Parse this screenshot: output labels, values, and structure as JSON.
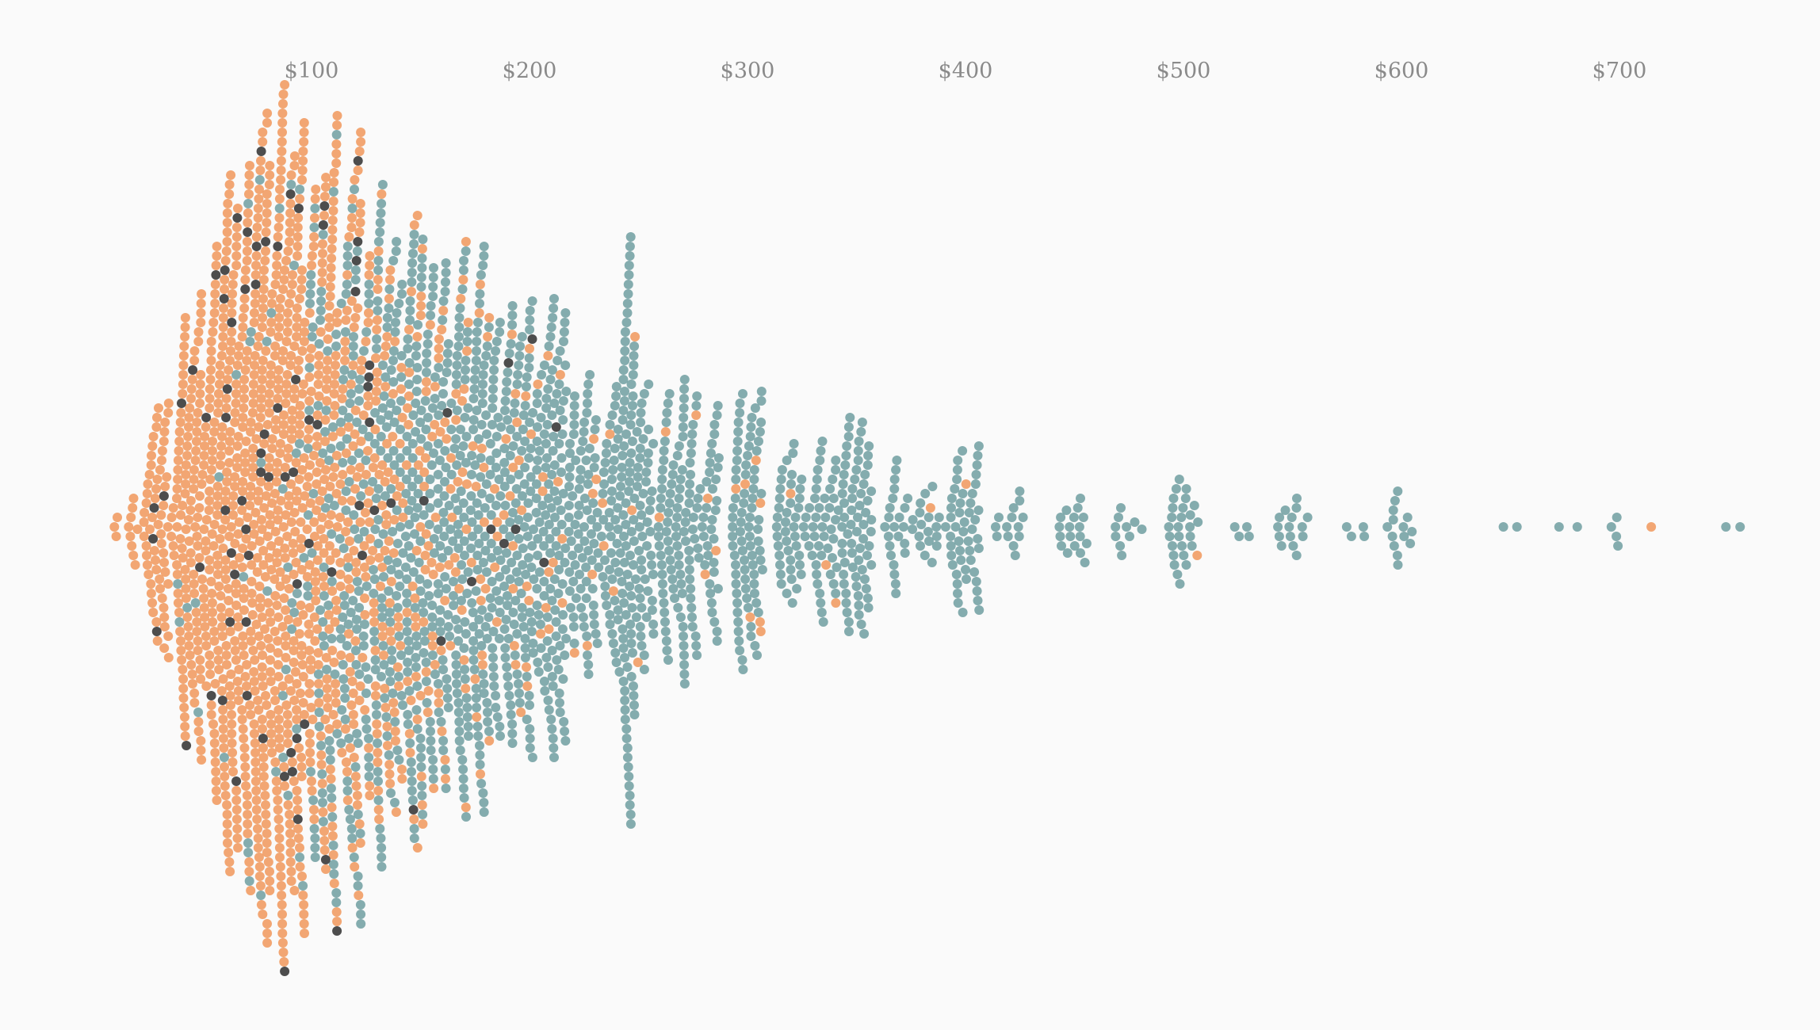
{
  "chart_data": {
    "type": "scatter",
    "subtype": "beeswarm",
    "title": "",
    "xlabel": "",
    "ylabel": "",
    "x_axis": {
      "min": 0,
      "max": 800,
      "ticks": [
        100,
        200,
        300,
        400,
        500,
        600,
        700
      ],
      "tick_labels": [
        "$100",
        "$200",
        "$300",
        "$400",
        "$500",
        "$600",
        "$700"
      ],
      "position": "top",
      "gridlines": false
    },
    "grid": false,
    "legend": "none",
    "colors": {
      "background": "#fafafa",
      "orange": "#f0965a",
      "teal": "#6f9ea0",
      "dark": "#3a3a3a",
      "tick_text": "#8a8a8a"
    },
    "groups": [
      {
        "color_key": "orange",
        "share": "majority below ~$150"
      },
      {
        "color_key": "teal",
        "share": "majority above ~$150"
      },
      {
        "color_key": "dark",
        "share": "sparse, ~$20–$210"
      }
    ],
    "distribution": [
      {
        "x": 15,
        "count": 12,
        "orange": 0.82,
        "dark": 0.18
      },
      {
        "x": 30,
        "count": 70,
        "orange": 0.92,
        "dark": 0.08
      },
      {
        "x": 45,
        "count": 150,
        "orange": 0.94,
        "dark": 0.04
      },
      {
        "x": 60,
        "count": 230,
        "orange": 0.93,
        "dark": 0.04
      },
      {
        "x": 75,
        "count": 280,
        "orange": 0.9,
        "dark": 0.04
      },
      {
        "x": 90,
        "count": 290,
        "orange": 0.85,
        "dark": 0.04
      },
      {
        "x": 105,
        "count": 260,
        "orange": 0.72,
        "dark": 0.04
      },
      {
        "x": 120,
        "count": 230,
        "orange": 0.55,
        "dark": 0.03
      },
      {
        "x": 135,
        "count": 210,
        "orange": 0.4,
        "dark": 0.02
      },
      {
        "x": 150,
        "count": 200,
        "orange": 0.3,
        "dark": 0.01
      },
      {
        "x": 165,
        "count": 180,
        "orange": 0.2,
        "dark": 0.01
      },
      {
        "x": 180,
        "count": 160,
        "orange": 0.14,
        "dark": 0.01
      },
      {
        "x": 195,
        "count": 150,
        "orange": 0.12,
        "dark": 0.01
      },
      {
        "x": 210,
        "count": 140,
        "orange": 0.1,
        "dark": 0.01
      },
      {
        "x": 225,
        "count": 90,
        "orange": 0.06,
        "dark": 0
      },
      {
        "x": 240,
        "count": 90,
        "orange": 0.05,
        "dark": 0
      },
      {
        "x": 250,
        "count": 110,
        "orange": 0.04,
        "dark": 0
      },
      {
        "x": 265,
        "count": 80,
        "orange": 0.04,
        "dark": 0
      },
      {
        "x": 280,
        "count": 70,
        "orange": 0.04,
        "dark": 0
      },
      {
        "x": 300,
        "count": 90,
        "orange": 0.05,
        "dark": 0
      },
      {
        "x": 320,
        "count": 45,
        "orange": 0.03,
        "dark": 0
      },
      {
        "x": 335,
        "count": 45,
        "orange": 0.03,
        "dark": 0
      },
      {
        "x": 350,
        "count": 70,
        "orange": 0.03,
        "dark": 0
      },
      {
        "x": 370,
        "count": 25,
        "orange": 0,
        "dark": 0
      },
      {
        "x": 385,
        "count": 18,
        "orange": 0.05,
        "dark": 0
      },
      {
        "x": 400,
        "count": 50,
        "orange": 0.02,
        "dark": 0
      },
      {
        "x": 420,
        "count": 14,
        "orange": 0,
        "dark": 0
      },
      {
        "x": 450,
        "count": 18,
        "orange": 0,
        "dark": 0
      },
      {
        "x": 475,
        "count": 10,
        "orange": 0,
        "dark": 0
      },
      {
        "x": 500,
        "count": 28,
        "orange": 0.04,
        "dark": 0
      },
      {
        "x": 525,
        "count": 4,
        "orange": 0,
        "dark": 0
      },
      {
        "x": 550,
        "count": 15,
        "orange": 0,
        "dark": 0
      },
      {
        "x": 580,
        "count": 4,
        "orange": 0,
        "dark": 0
      },
      {
        "x": 600,
        "count": 14,
        "orange": 0,
        "dark": 0
      },
      {
        "x": 650,
        "count": 2,
        "orange": 0,
        "dark": 0
      },
      {
        "x": 675,
        "count": 2,
        "orange": 0,
        "dark": 0
      },
      {
        "x": 700,
        "count": 4,
        "orange": 0,
        "dark": 0
      },
      {
        "x": 710,
        "count": 1,
        "orange": 1,
        "dark": 0
      },
      {
        "x": 750,
        "count": 2,
        "orange": 0,
        "dark": 0
      }
    ]
  }
}
